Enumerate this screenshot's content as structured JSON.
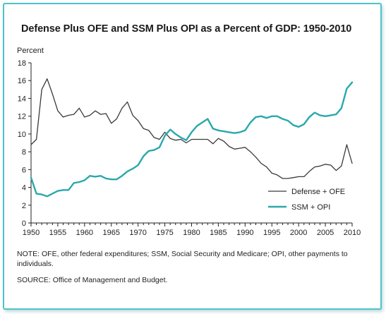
{
  "title": "Defense Plus OFE and SSM Plus OPI as a Percent of GDP: 1950-2010",
  "note": "NOTE: OFE, other federal expenditures; SSM, Social Security and Medicare; OPI, other payments to individuals.",
  "source": "SOURCE: Office of Management and Budget.",
  "colors": {
    "frame": "#4cc3c9",
    "defense": "#3a3a3a",
    "ssm": "#2aa8ac"
  },
  "chart_data": {
    "type": "line",
    "title": "Defense Plus OFE and SSM Plus OPI as a Percent of GDP: 1950-2010",
    "xlabel": "",
    "ylabel": "Percent",
    "xlim": [
      1950,
      2010
    ],
    "ylim": [
      0,
      18
    ],
    "xticks": [
      "1950",
      "1955",
      "1960",
      "1965",
      "1970",
      "1975",
      "1980",
      "1985",
      "1990",
      "1995",
      "2000",
      "2005",
      "2010"
    ],
    "yticks": [
      "0",
      "2",
      "4",
      "6",
      "8",
      "10",
      "12",
      "14",
      "16",
      "18"
    ],
    "x": [
      1950,
      1951,
      1952,
      1953,
      1954,
      1955,
      1956,
      1957,
      1958,
      1959,
      1960,
      1961,
      1962,
      1963,
      1964,
      1965,
      1966,
      1967,
      1968,
      1969,
      1970,
      1971,
      1972,
      1973,
      1974,
      1975,
      1976,
      1977,
      1978,
      1979,
      1980,
      1981,
      1982,
      1983,
      1984,
      1985,
      1986,
      1987,
      1988,
      1989,
      1990,
      1991,
      1992,
      1993,
      1994,
      1995,
      1996,
      1997,
      1998,
      1999,
      2000,
      2001,
      2002,
      2003,
      2004,
      2005,
      2006,
      2007,
      2008,
      2009,
      2010
    ],
    "series": [
      {
        "name": "Defense + OFE",
        "values": [
          8.8,
          9.4,
          15.0,
          16.2,
          14.5,
          12.6,
          11.9,
          12.1,
          12.2,
          12.9,
          11.9,
          12.1,
          12.6,
          12.2,
          12.3,
          11.2,
          11.7,
          12.9,
          13.6,
          12.1,
          11.5,
          10.6,
          10.4,
          9.6,
          9.4,
          10.2,
          9.5,
          9.3,
          9.4,
          9.0,
          9.4,
          9.4,
          9.4,
          9.4,
          8.9,
          9.5,
          9.2,
          8.6,
          8.3,
          8.4,
          8.5,
          8.0,
          7.4,
          6.7,
          6.3,
          5.6,
          5.4,
          5.0,
          5.0,
          5.1,
          5.2,
          5.2,
          5.8,
          6.3,
          6.4,
          6.6,
          6.5,
          5.9,
          6.4,
          8.8,
          6.7
        ]
      },
      {
        "name": "SSM + OPI",
        "values": [
          5.1,
          3.3,
          3.2,
          3.0,
          3.3,
          3.6,
          3.7,
          3.7,
          4.5,
          4.6,
          4.8,
          5.3,
          5.2,
          5.3,
          5.0,
          4.9,
          4.9,
          5.3,
          5.8,
          6.1,
          6.5,
          7.5,
          8.1,
          8.2,
          8.5,
          9.8,
          10.5,
          10.0,
          9.6,
          9.3,
          10.2,
          10.9,
          11.3,
          11.7,
          10.6,
          10.4,
          10.3,
          10.2,
          10.1,
          10.2,
          10.4,
          11.3,
          11.9,
          12.0,
          11.8,
          12.0,
          12.0,
          11.7,
          11.5,
          11.0,
          10.8,
          11.1,
          11.9,
          12.4,
          12.1,
          12.0,
          12.1,
          12.2,
          12.9,
          15.1,
          15.8
        ]
      }
    ],
    "legend": "bottom-right",
    "grid": false
  }
}
